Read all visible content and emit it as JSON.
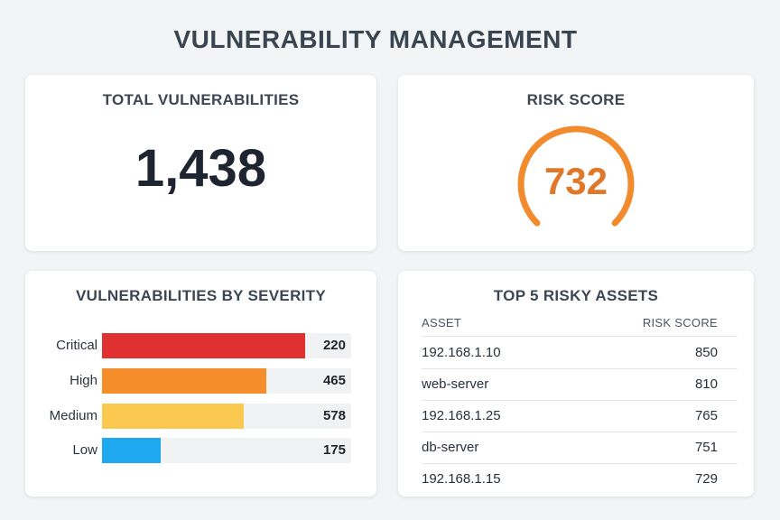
{
  "page": {
    "title": "VULNERABILITY MANAGEMENT"
  },
  "total": {
    "title": "TOTAL VULNERABILITIES",
    "value": "1,438"
  },
  "risk": {
    "title": "RISK SCORE",
    "value": "732",
    "gauge_color": "#f28a2e"
  },
  "severity": {
    "title": "VULNERABILITIES BY SEVERITY",
    "max": 578,
    "items": [
      {
        "label": "Critical",
        "value": 220,
        "value_text": "220",
        "color": "#e03131",
        "fill_fraction": 1.0
      },
      {
        "label": "High",
        "value": 465,
        "value_text": "465",
        "color": "#f68d2b",
        "fill_fraction": 0.81
      },
      {
        "label": "Medium",
        "value": 578,
        "value_text": "578",
        "color": "#fbc950",
        "fill_fraction": 0.7
      },
      {
        "label": "Low",
        "value": 175,
        "value_text": "175",
        "color": "#1ea8f0",
        "fill_fraction": 0.29
      }
    ]
  },
  "assets": {
    "title": "TOP 5 RISKY ASSETS",
    "columns": {
      "asset": "ASSET",
      "score": "RISK SCORE"
    },
    "rows": [
      {
        "asset": "192.168.1.10",
        "score": "850"
      },
      {
        "asset": "web-server",
        "score": "810"
      },
      {
        "asset": "192.168.1.25",
        "score": "765"
      },
      {
        "asset": "db-server",
        "score": "751"
      },
      {
        "asset": "192.168.1.15",
        "score": "729"
      }
    ]
  }
}
